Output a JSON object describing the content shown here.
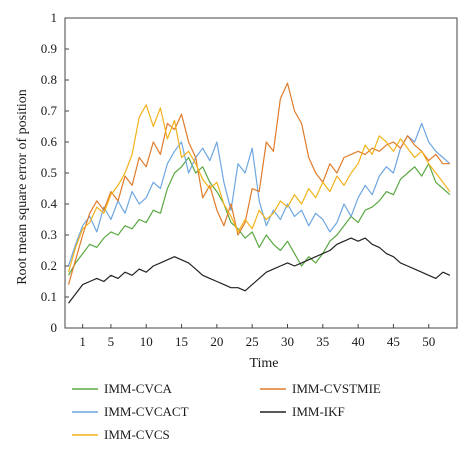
{
  "chart_data": {
    "type": "line",
    "title": "",
    "xlabel": "Time",
    "ylabel": "Root mean square error of position",
    "xlim": [
      -1.5,
      54
    ],
    "ylim": [
      0,
      1
    ],
    "x_ticks": [
      "1",
      "5",
      "10",
      "15",
      "20",
      "25",
      "30",
      "35",
      "40",
      "45",
      "50"
    ],
    "y_ticks": [
      "0",
      "0.1",
      "0.2",
      "0.3",
      "0.4",
      "0.5",
      "0.6",
      "0.7",
      "0.8",
      "0.9",
      "1"
    ],
    "grid": false,
    "legend_position": "bottom",
    "x": [
      -1,
      0,
      1,
      2,
      3,
      4,
      5,
      6,
      7,
      8,
      9,
      10,
      11,
      12,
      13,
      14,
      15,
      16,
      17,
      18,
      19,
      20,
      21,
      22,
      23,
      24,
      25,
      26,
      27,
      28,
      29,
      30,
      31,
      32,
      33,
      34,
      35,
      36,
      37,
      38,
      39,
      40,
      41,
      42,
      43,
      44,
      45,
      46,
      47,
      48,
      49,
      50,
      51,
      52,
      53
    ],
    "series": [
      {
        "name": "IMM-CVCA",
        "color": "#5aa843",
        "values": [
          0.17,
          0.21,
          0.24,
          0.27,
          0.26,
          0.29,
          0.31,
          0.3,
          0.33,
          0.32,
          0.35,
          0.34,
          0.38,
          0.37,
          0.45,
          0.5,
          0.52,
          0.55,
          0.5,
          0.52,
          0.47,
          0.44,
          0.4,
          0.34,
          0.32,
          0.29,
          0.31,
          0.26,
          0.3,
          0.27,
          0.25,
          0.28,
          0.24,
          0.2,
          0.23,
          0.21,
          0.24,
          0.28,
          0.3,
          0.33,
          0.36,
          0.34,
          0.38,
          0.39,
          0.41,
          0.44,
          0.43,
          0.48,
          0.5,
          0.52,
          0.49,
          0.53,
          0.47,
          0.45,
          0.43
        ]
      },
      {
        "name": "IMM-CVCACT",
        "color": "#6ea6e0",
        "values": [
          0.2,
          0.27,
          0.33,
          0.36,
          0.31,
          0.39,
          0.35,
          0.41,
          0.37,
          0.44,
          0.4,
          0.42,
          0.47,
          0.45,
          0.53,
          0.57,
          0.6,
          0.5,
          0.55,
          0.58,
          0.54,
          0.6,
          0.47,
          0.38,
          0.53,
          0.5,
          0.58,
          0.41,
          0.33,
          0.38,
          0.35,
          0.4,
          0.36,
          0.38,
          0.33,
          0.37,
          0.35,
          0.31,
          0.34,
          0.4,
          0.36,
          0.42,
          0.46,
          0.43,
          0.49,
          0.52,
          0.5,
          0.58,
          0.62,
          0.6,
          0.66,
          0.6,
          0.57,
          0.55,
          0.53
        ]
      },
      {
        "name": "IMM-CVSTMIE",
        "color": "#e07b2a",
        "values": [
          0.14,
          0.22,
          0.3,
          0.37,
          0.41,
          0.38,
          0.44,
          0.41,
          0.49,
          0.46,
          0.55,
          0.52,
          0.6,
          0.56,
          0.66,
          0.64,
          0.69,
          0.6,
          0.55,
          0.42,
          0.46,
          0.38,
          0.33,
          0.4,
          0.3,
          0.34,
          0.45,
          0.44,
          0.6,
          0.57,
          0.74,
          0.79,
          0.7,
          0.66,
          0.55,
          0.5,
          0.47,
          0.53,
          0.5,
          0.55,
          0.56,
          0.57,
          0.56,
          0.58,
          0.57,
          0.59,
          0.6,
          0.58,
          0.62,
          0.59,
          0.57,
          0.54,
          0.56,
          0.53,
          0.53
        ]
      },
      {
        "name": "IMM-CVCS",
        "color": "#f2b31c",
        "values": [
          0.18,
          0.26,
          0.32,
          0.34,
          0.39,
          0.37,
          0.43,
          0.46,
          0.5,
          0.56,
          0.68,
          0.72,
          0.65,
          0.71,
          0.61,
          0.67,
          0.55,
          0.57,
          0.53,
          0.48,
          0.45,
          0.47,
          0.4,
          0.36,
          0.31,
          0.35,
          0.32,
          0.38,
          0.35,
          0.37,
          0.41,
          0.39,
          0.43,
          0.4,
          0.45,
          0.42,
          0.47,
          0.44,
          0.49,
          0.46,
          0.5,
          0.53,
          0.59,
          0.56,
          0.62,
          0.6,
          0.57,
          0.61,
          0.58,
          0.55,
          0.57,
          0.53,
          0.5,
          0.47,
          0.44
        ]
      },
      {
        "name": "IMM-IKF",
        "color": "#222222",
        "values": [
          0.08,
          0.11,
          0.14,
          0.15,
          0.16,
          0.15,
          0.17,
          0.16,
          0.18,
          0.17,
          0.19,
          0.18,
          0.2,
          0.21,
          0.22,
          0.23,
          0.22,
          0.21,
          0.19,
          0.17,
          0.16,
          0.15,
          0.14,
          0.13,
          0.13,
          0.12,
          0.14,
          0.16,
          0.18,
          0.19,
          0.2,
          0.21,
          0.2,
          0.21,
          0.22,
          0.23,
          0.24,
          0.25,
          0.27,
          0.28,
          0.29,
          0.28,
          0.29,
          0.27,
          0.26,
          0.24,
          0.23,
          0.21,
          0.2,
          0.19,
          0.18,
          0.17,
          0.16,
          0.18,
          0.17
        ]
      }
    ]
  }
}
